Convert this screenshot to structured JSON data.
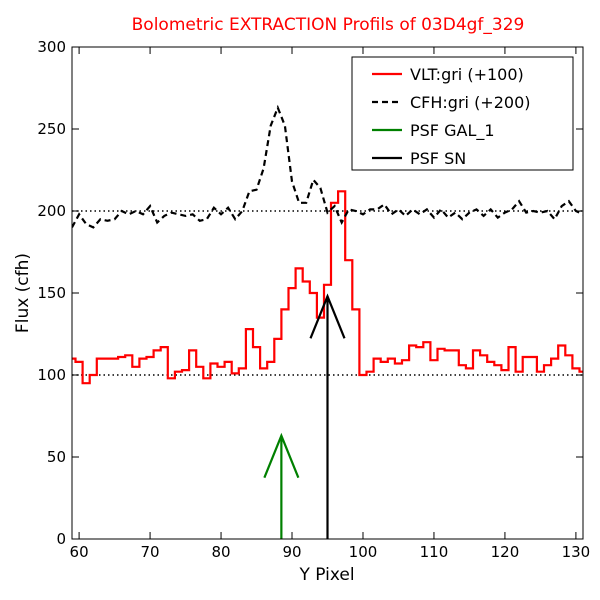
{
  "chart_data": {
    "type": "line",
    "title": "Bolometric EXTRACTION Profils of 03D4gf_329",
    "title_color": "#ff0000",
    "xlabel": "Y Pixel",
    "ylabel": "Flux (cfh)",
    "xlim": [
      59,
      131
    ],
    "ylim": [
      0,
      300
    ],
    "xticks": [
      60,
      70,
      80,
      90,
      100,
      110,
      120,
      130
    ],
    "yticks": [
      0,
      50,
      100,
      150,
      200,
      250,
      300
    ],
    "reference_lines": [
      100,
      200
    ],
    "legend_position": "top-right",
    "series": [
      {
        "name": "VLT:gri (+100)",
        "color": "#ff0000",
        "style": "steps",
        "x": [
          59,
          60,
          61,
          62,
          63,
          64,
          65,
          66,
          67,
          68,
          69,
          70,
          71,
          72,
          73,
          74,
          75,
          76,
          77,
          78,
          79,
          80,
          81,
          82,
          83,
          84,
          85,
          86,
          87,
          88,
          89,
          90,
          91,
          92,
          93,
          94,
          95,
          96,
          97,
          98,
          99,
          100,
          101,
          102,
          103,
          104,
          105,
          106,
          107,
          108,
          109,
          110,
          111,
          112,
          113,
          114,
          115,
          116,
          117,
          118,
          119,
          120,
          121,
          122,
          123,
          124,
          125,
          126,
          127,
          128,
          129,
          130,
          131
        ],
        "y": [
          110,
          108,
          95,
          100,
          110,
          110,
          110,
          111,
          112,
          105,
          110,
          111,
          115,
          117,
          98,
          102,
          103,
          115,
          105,
          98,
          107,
          105,
          108,
          101,
          104,
          128,
          117,
          104,
          108,
          122,
          140,
          153,
          165,
          157,
          150,
          135,
          155,
          205,
          212,
          170,
          140,
          100,
          102,
          110,
          108,
          110,
          107,
          109,
          118,
          117,
          120,
          109,
          116,
          115,
          115,
          106,
          104,
          115,
          112,
          108,
          106,
          103,
          117,
          102,
          111,
          111,
          102,
          106,
          110,
          118,
          112,
          104,
          102
        ]
      },
      {
        "name": "CFH:gri (+200)",
        "color": "#000000",
        "style": "dashed",
        "x": [
          59,
          60,
          61,
          62,
          63,
          64,
          65,
          66,
          67,
          68,
          69,
          70,
          71,
          72,
          73,
          74,
          75,
          76,
          77,
          78,
          79,
          80,
          81,
          82,
          83,
          84,
          85,
          86,
          87,
          88,
          89,
          90,
          91,
          92,
          93,
          94,
          95,
          96,
          97,
          98,
          99,
          100,
          101,
          102,
          103,
          104,
          105,
          106,
          107,
          108,
          109,
          110,
          111,
          112,
          113,
          114,
          115,
          116,
          117,
          118,
          119,
          120,
          121,
          122,
          123,
          124,
          125,
          126,
          127,
          128,
          129,
          130,
          131
        ],
        "y": [
          190,
          198,
          192,
          190,
          195,
          194,
          195,
          200,
          198,
          200,
          198,
          203,
          193,
          197,
          199,
          198,
          197,
          198,
          194,
          195,
          202,
          198,
          202,
          195,
          200,
          212,
          213,
          226,
          252,
          263,
          252,
          218,
          205,
          205,
          219,
          214,
          199,
          203,
          193,
          201,
          200,
          198,
          201,
          201,
          204,
          198,
          201,
          197,
          201,
          198,
          201,
          196,
          201,
          196,
          199,
          195,
          199,
          201,
          197,
          201,
          196,
          199,
          201,
          206,
          199,
          200,
          199,
          200,
          195,
          203,
          206,
          200,
          198
        ]
      },
      {
        "name": "PSF GAL_1",
        "color": "#008000",
        "style": "arrow",
        "x_pos": 88.5,
        "y_tip": 63
      },
      {
        "name": "PSF SN",
        "color": "#000000",
        "style": "arrow",
        "x_pos": 95,
        "y_tip": 148
      }
    ]
  }
}
